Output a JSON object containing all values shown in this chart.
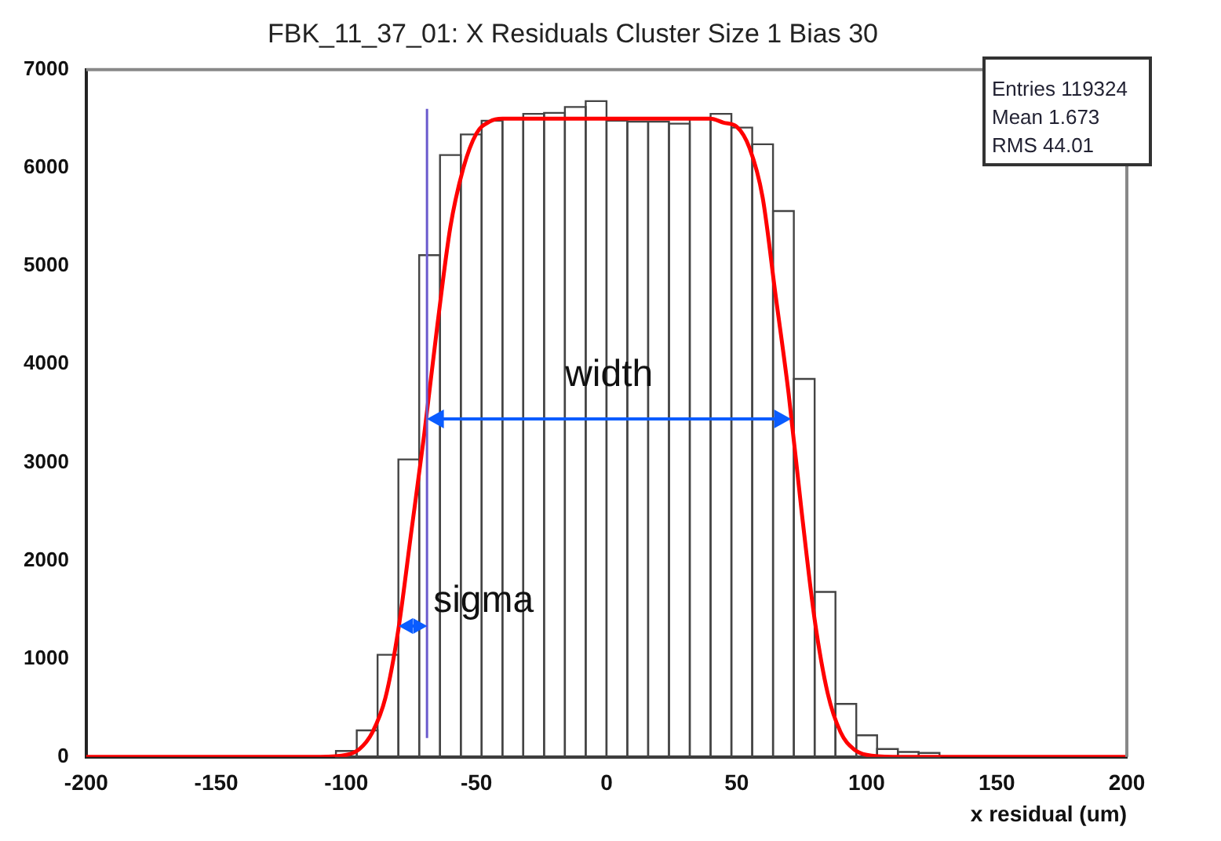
{
  "chart_data": {
    "type": "histogram",
    "title": "FBK_11_37_01: X Residuals Cluster Size 1 Bias 30",
    "xlabel": "x residual (um)",
    "bins": [
      -104,
      -96,
      -88,
      -80,
      -72,
      -64,
      -56,
      -48,
      -40,
      -32,
      -24,
      -16,
      -8,
      0,
      8,
      16,
      24,
      32,
      40,
      48,
      56,
      64,
      72,
      80,
      88,
      96,
      104,
      112,
      120,
      128
    ],
    "series": [
      {
        "color": "#444444",
        "values": [
          60,
          270,
          1040,
          3030,
          5110,
          6130,
          6340,
          6480,
          6500,
          6550,
          6560,
          6620,
          6680,
          6480,
          6470,
          6470,
          6450,
          6500,
          6550,
          6410,
          6240,
          5560,
          3850,
          1680,
          540,
          220,
          80,
          50,
          40
        ]
      },
      {
        "type": "line",
        "color": "#ff0000",
        "x": [
          -200,
          -110,
          -100,
          -95,
          -90,
          -85,
          -80,
          -75,
          -70,
          -65,
          -60,
          -55,
          -50,
          -45,
          -40,
          40,
          45,
          50,
          55,
          60,
          65,
          70,
          75,
          80,
          85,
          90,
          95,
          100,
          110,
          200
        ],
        "values": [
          0,
          0,
          20,
          80,
          250,
          600,
          1300,
          2300,
          3300,
          4400,
          5400,
          6000,
          6350,
          6470,
          6500,
          6500,
          6460,
          6420,
          6200,
          5700,
          4700,
          3700,
          2500,
          1400,
          650,
          250,
          80,
          20,
          0,
          0
        ]
      }
    ],
    "xlim": [
      -200,
      200
    ],
    "xticks": [
      -200,
      -150,
      -100,
      -50,
      0,
      50,
      100,
      150,
      200
    ],
    "ylim": [
      0,
      7000
    ],
    "yticks": [
      0,
      1000,
      2000,
      3000,
      4000,
      5000,
      6000,
      7000
    ],
    "grid": false,
    "legend": false,
    "ref_lines": [
      {
        "axis": "x",
        "value": -69,
        "color": "#6a5acd"
      }
    ],
    "annotations": [
      {
        "text": "width",
        "x": 1,
        "y": 3450
      },
      {
        "text": "sigma",
        "x": -80,
        "y": 1340
      },
      "Entries 119324",
      "Mean 1.673",
      "RMS 44.01"
    ]
  }
}
